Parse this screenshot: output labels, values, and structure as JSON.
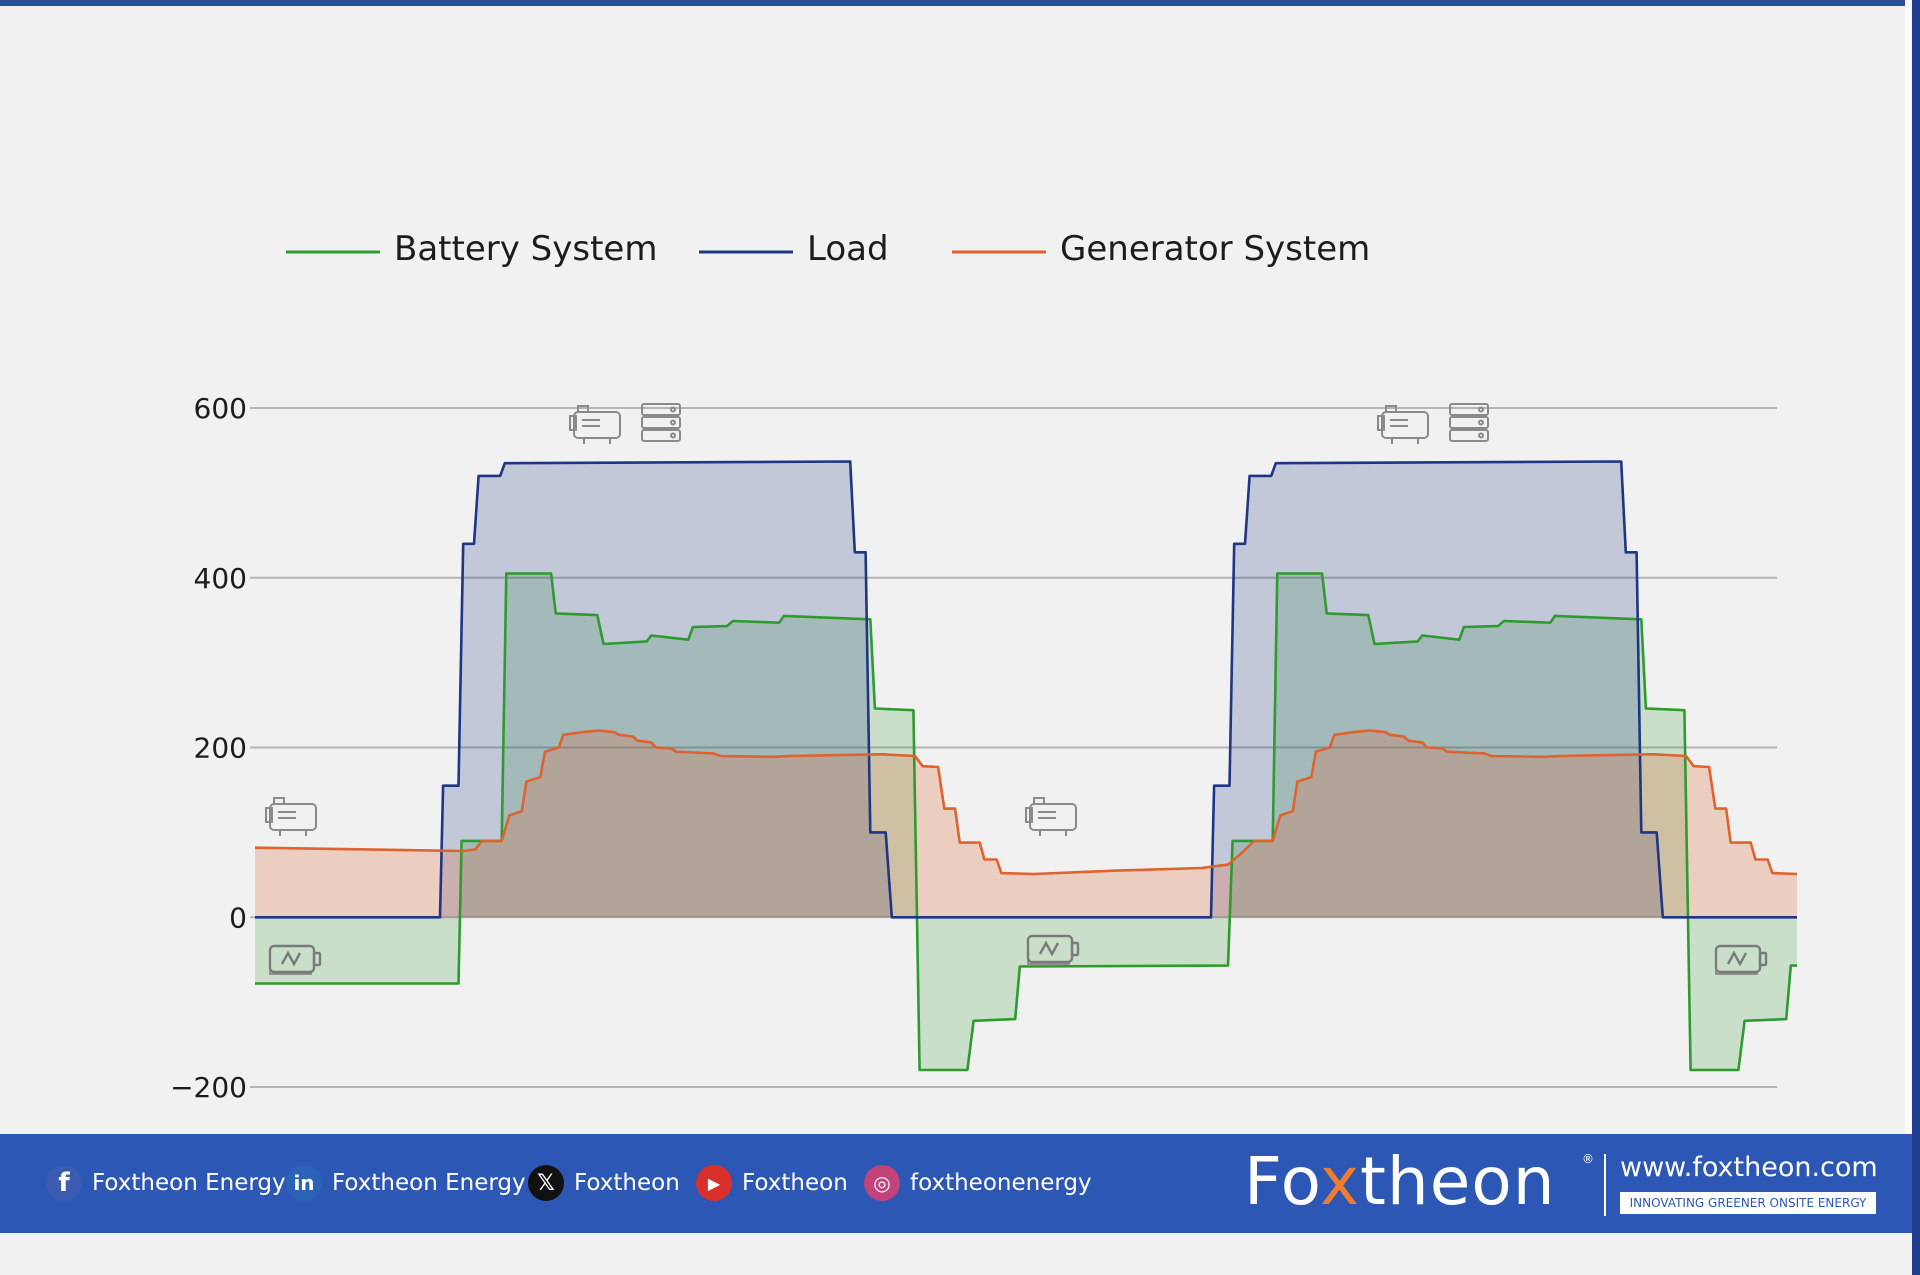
{
  "chart_data": {
    "type": "line",
    "fill": "area-to-zero",
    "grid": "horizontal",
    "legend_position": "top-left",
    "ylim": [
      -200,
      600
    ],
    "y_ticks": [
      600,
      400,
      200,
      0,
      -200
    ],
    "xlim": [
      0,
      100
    ],
    "colors": {
      "Battery System": "#2f9b2f",
      "Load": "#1f3585",
      "Generator System": "#e0622e"
    },
    "legend": [
      "Battery System",
      "Load",
      "Generator System"
    ],
    "series": [
      {
        "name": "Battery System",
        "points": [
          [
            0,
            -78
          ],
          [
            13.2,
            -78
          ],
          [
            13.4,
            90
          ],
          [
            16,
            90
          ],
          [
            16.3,
            405
          ],
          [
            19.2,
            405
          ],
          [
            19.5,
            358
          ],
          [
            22.2,
            356
          ],
          [
            22.6,
            322
          ],
          [
            25.4,
            325
          ],
          [
            25.7,
            332
          ],
          [
            28.1,
            327
          ],
          [
            28.4,
            342
          ],
          [
            30.6,
            343
          ],
          [
            31,
            349
          ],
          [
            34,
            347
          ],
          [
            34.3,
            355
          ],
          [
            39.9,
            351
          ],
          [
            40.2,
            246
          ],
          [
            42.7,
            244
          ],
          [
            43.1,
            -180
          ],
          [
            46.2,
            -180
          ],
          [
            46.6,
            -122
          ],
          [
            49.3,
            -120
          ],
          [
            49.6,
            -58
          ],
          [
            63.1,
            -57
          ],
          [
            63.4,
            90
          ],
          [
            66,
            90
          ],
          [
            66.3,
            405
          ],
          [
            69.2,
            405
          ],
          [
            69.5,
            358
          ],
          [
            72.2,
            356
          ],
          [
            72.6,
            322
          ],
          [
            75.4,
            325
          ],
          [
            75.7,
            332
          ],
          [
            78.1,
            327
          ],
          [
            78.4,
            342
          ],
          [
            80.6,
            343
          ],
          [
            81,
            349
          ],
          [
            84,
            347
          ],
          [
            84.3,
            355
          ],
          [
            89.9,
            351
          ],
          [
            90.2,
            246
          ],
          [
            92.7,
            244
          ],
          [
            93.1,
            -180
          ],
          [
            96.2,
            -180
          ],
          [
            96.6,
            -122
          ],
          [
            99.3,
            -120
          ],
          [
            99.6,
            -57
          ],
          [
            100,
            -57
          ]
        ]
      },
      {
        "name": "Load",
        "points": [
          [
            0,
            0
          ],
          [
            12,
            0
          ],
          [
            12.2,
            155
          ],
          [
            13.2,
            155
          ],
          [
            13.5,
            440
          ],
          [
            14.2,
            440
          ],
          [
            14.5,
            520
          ],
          [
            15.9,
            520
          ],
          [
            16.2,
            535
          ],
          [
            38.6,
            537
          ],
          [
            38.9,
            430
          ],
          [
            39.6,
            430
          ],
          [
            39.9,
            100
          ],
          [
            40.9,
            100
          ],
          [
            41.3,
            0
          ],
          [
            62,
            0
          ],
          [
            62.2,
            155
          ],
          [
            63.2,
            155
          ],
          [
            63.5,
            440
          ],
          [
            64.2,
            440
          ],
          [
            64.5,
            520
          ],
          [
            65.9,
            520
          ],
          [
            66.2,
            535
          ],
          [
            88.6,
            537
          ],
          [
            88.9,
            430
          ],
          [
            89.6,
            430
          ],
          [
            89.9,
            100
          ],
          [
            90.9,
            100
          ],
          [
            91.3,
            0
          ],
          [
            100,
            0
          ]
        ]
      },
      {
        "name": "Generator System",
        "points": [
          [
            0,
            82
          ],
          [
            13.5,
            78
          ],
          [
            14.3,
            80
          ],
          [
            14.7,
            90
          ],
          [
            16,
            90
          ],
          [
            16.5,
            120
          ],
          [
            17.3,
            125
          ],
          [
            17.6,
            160
          ],
          [
            18.5,
            165
          ],
          [
            18.8,
            195
          ],
          [
            19.7,
            200
          ],
          [
            20,
            215
          ],
          [
            21.2,
            218
          ],
          [
            22.3,
            220
          ],
          [
            23.3,
            218
          ],
          [
            23.6,
            215
          ],
          [
            24.5,
            213
          ],
          [
            24.8,
            208
          ],
          [
            25.7,
            206
          ],
          [
            26,
            200
          ],
          [
            27,
            199
          ],
          [
            27.3,
            195
          ],
          [
            29.7,
            193
          ],
          [
            30.2,
            190
          ],
          [
            33.6,
            189
          ],
          [
            34.6,
            190
          ],
          [
            37.8,
            191
          ],
          [
            40.7,
            192
          ],
          [
            42.8,
            190
          ],
          [
            43.3,
            178
          ],
          [
            44.3,
            177
          ],
          [
            44.7,
            128
          ],
          [
            45.4,
            128
          ],
          [
            45.7,
            88
          ],
          [
            47,
            88
          ],
          [
            47.3,
            68
          ],
          [
            48.1,
            68
          ],
          [
            48.4,
            52
          ],
          [
            50.5,
            51
          ],
          [
            55.9,
            55
          ],
          [
            61.4,
            58
          ],
          [
            63.1,
            62
          ],
          [
            64,
            76
          ],
          [
            64.8,
            90
          ],
          [
            66,
            90
          ],
          [
            66.5,
            120
          ],
          [
            67.3,
            125
          ],
          [
            67.6,
            160
          ],
          [
            68.5,
            165
          ],
          [
            68.8,
            195
          ],
          [
            69.7,
            200
          ],
          [
            70,
            215
          ],
          [
            71.2,
            218
          ],
          [
            72.3,
            220
          ],
          [
            73.3,
            218
          ],
          [
            73.6,
            215
          ],
          [
            74.5,
            213
          ],
          [
            74.8,
            208
          ],
          [
            75.7,
            206
          ],
          [
            76,
            200
          ],
          [
            77,
            199
          ],
          [
            77.3,
            195
          ],
          [
            79.7,
            193
          ],
          [
            80.2,
            190
          ],
          [
            83.6,
            189
          ],
          [
            84.6,
            190
          ],
          [
            87.8,
            191
          ],
          [
            90.7,
            192
          ],
          [
            92.8,
            190
          ],
          [
            93.3,
            178
          ],
          [
            94.3,
            177
          ],
          [
            94.7,
            128
          ],
          [
            95.4,
            128
          ],
          [
            95.7,
            88
          ],
          [
            97,
            88
          ],
          [
            97.3,
            68
          ],
          [
            98.1,
            68
          ],
          [
            98.4,
            52
          ],
          [
            100,
            51
          ]
        ]
      }
    ]
  },
  "footer": {
    "social": [
      {
        "icon": "facebook-icon",
        "label": "Foxtheon Energy"
      },
      {
        "icon": "linkedin-icon",
        "label": "Foxtheon Energy"
      },
      {
        "icon": "x-icon",
        "label": "Foxtheon"
      },
      {
        "icon": "youtube-icon",
        "label": "Foxtheon"
      },
      {
        "icon": "instagram-icon",
        "label": "foxtheonenergy"
      }
    ],
    "brand": {
      "pre": "Fo",
      "accent": "x",
      "post": "theon"
    },
    "registered": "®",
    "website": "www.foxtheon.com",
    "tagline": "INNOVATING GREENER ONSITE ENERGY"
  }
}
